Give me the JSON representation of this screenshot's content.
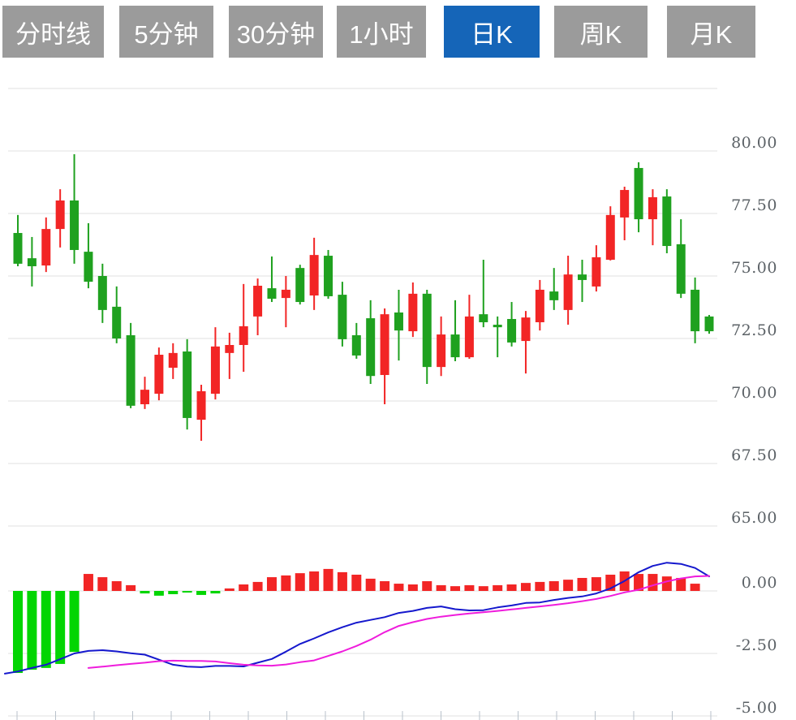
{
  "tabs": {
    "items": [
      {
        "id": "timeline",
        "label": "分时线",
        "active": false
      },
      {
        "id": "5min",
        "label": "5分钟",
        "active": false
      },
      {
        "id": "30min",
        "label": "30分钟",
        "active": false
      },
      {
        "id": "1hour",
        "label": "1小时",
        "active": false
      },
      {
        "id": "daily-k",
        "label": "日K",
        "active": true
      },
      {
        "id": "weekly-k",
        "label": "周K",
        "active": false
      },
      {
        "id": "monthly-k",
        "label": "月K",
        "active": false
      }
    ],
    "active_bg": "#1565b8",
    "inactive_bg": "#9b9b9b",
    "text_color": "#ffffff"
  },
  "colors": {
    "bullish_red": "#f22525",
    "bearish_green": "#1fa11f",
    "hist_positive": "#f22525",
    "hist_negative": "#02d502",
    "dif_line": "#1518cd",
    "dea_line": "#ef1cdc",
    "gridline": "#e0e0e0",
    "axis_label": "#5b6166",
    "x_tick": "#b9c2cb"
  },
  "chart_data": {
    "type": "candlestick",
    "panels": [
      "price-candles",
      "macd-indicator"
    ],
    "price_axis": {
      "tick_labels": [
        "80.00",
        "77.50",
        "75.00",
        "72.50",
        "70.00",
        "67.50",
        "65.00"
      ],
      "tick_values": [
        80,
        77.5,
        75,
        72.5,
        70,
        67.5,
        65
      ],
      "top_gridline_value": 82.5,
      "visible_range": [
        63.8,
        82.5
      ],
      "grid": true,
      "legend": "none"
    },
    "indicator_axis": {
      "tick_labels": [
        "0.00",
        "-2.50",
        "-5.00"
      ],
      "tick_values": [
        0,
        -2.5,
        -5
      ]
    },
    "candles_ohlc": [
      [
        76.72,
        77.44,
        75.39,
        75.49
      ],
      [
        75.71,
        76.56,
        74.58,
        75.39
      ],
      [
        75.42,
        77.34,
        75.16,
        76.88
      ],
      [
        76.88,
        78.47,
        76.14,
        78.02
      ],
      [
        78.02,
        79.87,
        75.49,
        76.04
      ],
      [
        75.97,
        77.11,
        74.51,
        74.77
      ],
      [
        75.0,
        75.49,
        73.12,
        73.64
      ],
      [
        73.77,
        74.58,
        72.31,
        72.5
      ],
      [
        72.63,
        73.12,
        69.71,
        69.81
      ],
      [
        69.87,
        70.97,
        69.68,
        70.45
      ],
      [
        70.29,
        72.14,
        70.03,
        71.85
      ],
      [
        71.33,
        72.31,
        70.88,
        71.92
      ],
      [
        71.98,
        72.47,
        68.86,
        69.32
      ],
      [
        69.25,
        70.65,
        68.41,
        70.39
      ],
      [
        70.29,
        72.95,
        70.06,
        72.18
      ],
      [
        71.92,
        72.73,
        70.88,
        72.24
      ],
      [
        72.24,
        74.68,
        71.17,
        72.99
      ],
      [
        73.38,
        74.9,
        72.63,
        74.61
      ],
      [
        74.51,
        75.78,
        73.96,
        74.09
      ],
      [
        74.12,
        75.0,
        72.95,
        74.45
      ],
      [
        75.32,
        75.45,
        73.86,
        73.96
      ],
      [
        74.22,
        76.53,
        73.64,
        75.84
      ],
      [
        75.81,
        76.04,
        74.09,
        74.19
      ],
      [
        74.25,
        74.77,
        72.18,
        72.47
      ],
      [
        72.63,
        73.12,
        71.69,
        71.82
      ],
      [
        73.31,
        74.03,
        70.68,
        71.0
      ],
      [
        71.04,
        73.7,
        69.87,
        73.47
      ],
      [
        73.54,
        74.45,
        71.62,
        72.82
      ],
      [
        72.79,
        74.74,
        72.56,
        74.29
      ],
      [
        74.29,
        74.45,
        70.68,
        71.36
      ],
      [
        71.36,
        73.38,
        71.0,
        72.66
      ],
      [
        72.66,
        74.03,
        71.59,
        71.75
      ],
      [
        71.75,
        74.25,
        71.69,
        73.38
      ],
      [
        73.47,
        75.65,
        72.95,
        73.15
      ],
      [
        73.05,
        73.38,
        71.75,
        72.95
      ],
      [
        73.28,
        73.96,
        72.18,
        72.34
      ],
      [
        72.4,
        73.6,
        71.1,
        73.34
      ],
      [
        73.15,
        74.84,
        72.82,
        74.45
      ],
      [
        74.38,
        75.32,
        73.64,
        74.03
      ],
      [
        73.64,
        75.81,
        73.05,
        75.06
      ],
      [
        75.06,
        75.65,
        73.96,
        74.84
      ],
      [
        74.58,
        76.23,
        74.38,
        75.75
      ],
      [
        75.65,
        77.79,
        75.62,
        77.44
      ],
      [
        77.34,
        78.57,
        76.43,
        78.44
      ],
      [
        79.32,
        79.55,
        76.75,
        77.27
      ],
      [
        77.27,
        78.47,
        76.23,
        78.15
      ],
      [
        78.18,
        78.47,
        75.91,
        76.2
      ],
      [
        76.27,
        77.27,
        74.12,
        74.29
      ],
      [
        74.45,
        74.94,
        72.31,
        72.79
      ],
      [
        73.38,
        73.44,
        72.69,
        72.79
      ]
    ],
    "macd": {
      "histogram": [
        -3.28,
        -3.15,
        -3.08,
        -2.92,
        -2.44,
        0.68,
        0.55,
        0.39,
        0.23,
        -0.1,
        -0.19,
        -0.13,
        -0.03,
        -0.16,
        -0.1,
        0.1,
        0.26,
        0.36,
        0.55,
        0.62,
        0.71,
        0.78,
        0.88,
        0.75,
        0.65,
        0.49,
        0.39,
        0.29,
        0.26,
        0.39,
        0.23,
        0.19,
        0.23,
        0.19,
        0.23,
        0.26,
        0.32,
        0.36,
        0.39,
        0.45,
        0.52,
        0.55,
        0.65,
        0.78,
        0.68,
        0.68,
        0.58,
        0.52,
        0.29,
        0
      ],
      "dif": [
        -3.22,
        -3.08,
        -2.95,
        -2.73,
        -2.5,
        -2.4,
        -2.37,
        -2.42,
        -2.49,
        -2.55,
        -2.75,
        -2.95,
        -3.03,
        -3.05,
        -3.0,
        -3.0,
        -3.02,
        -2.87,
        -2.72,
        -2.43,
        -2.12,
        -1.9,
        -1.66,
        -1.45,
        -1.27,
        -1.16,
        -1.05,
        -0.88,
        -0.8,
        -0.68,
        -0.62,
        -0.73,
        -0.78,
        -0.77,
        -0.66,
        -0.58,
        -0.48,
        -0.46,
        -0.36,
        -0.28,
        -0.22,
        -0.1,
        0.1,
        0.4,
        0.75,
        1.0,
        1.13,
        1.08,
        0.92,
        0.58
      ],
      "dif_left_edge_value": -3.31,
      "dea": [
        null,
        null,
        null,
        null,
        null,
        -3.08,
        -3.03,
        -2.97,
        -2.92,
        -2.87,
        -2.81,
        -2.79,
        -2.8,
        -2.8,
        -2.82,
        -2.89,
        -2.95,
        -2.98,
        -2.99,
        -2.94,
        -2.85,
        -2.78,
        -2.6,
        -2.42,
        -2.2,
        -1.95,
        -1.65,
        -1.4,
        -1.25,
        -1.12,
        -1.03,
        -0.96,
        -0.9,
        -0.85,
        -0.8,
        -0.74,
        -0.68,
        -0.62,
        -0.56,
        -0.49,
        -0.41,
        -0.32,
        -0.2,
        -0.06,
        0.05,
        0.22,
        0.38,
        0.5,
        0.58,
        0.6
      ]
    }
  }
}
